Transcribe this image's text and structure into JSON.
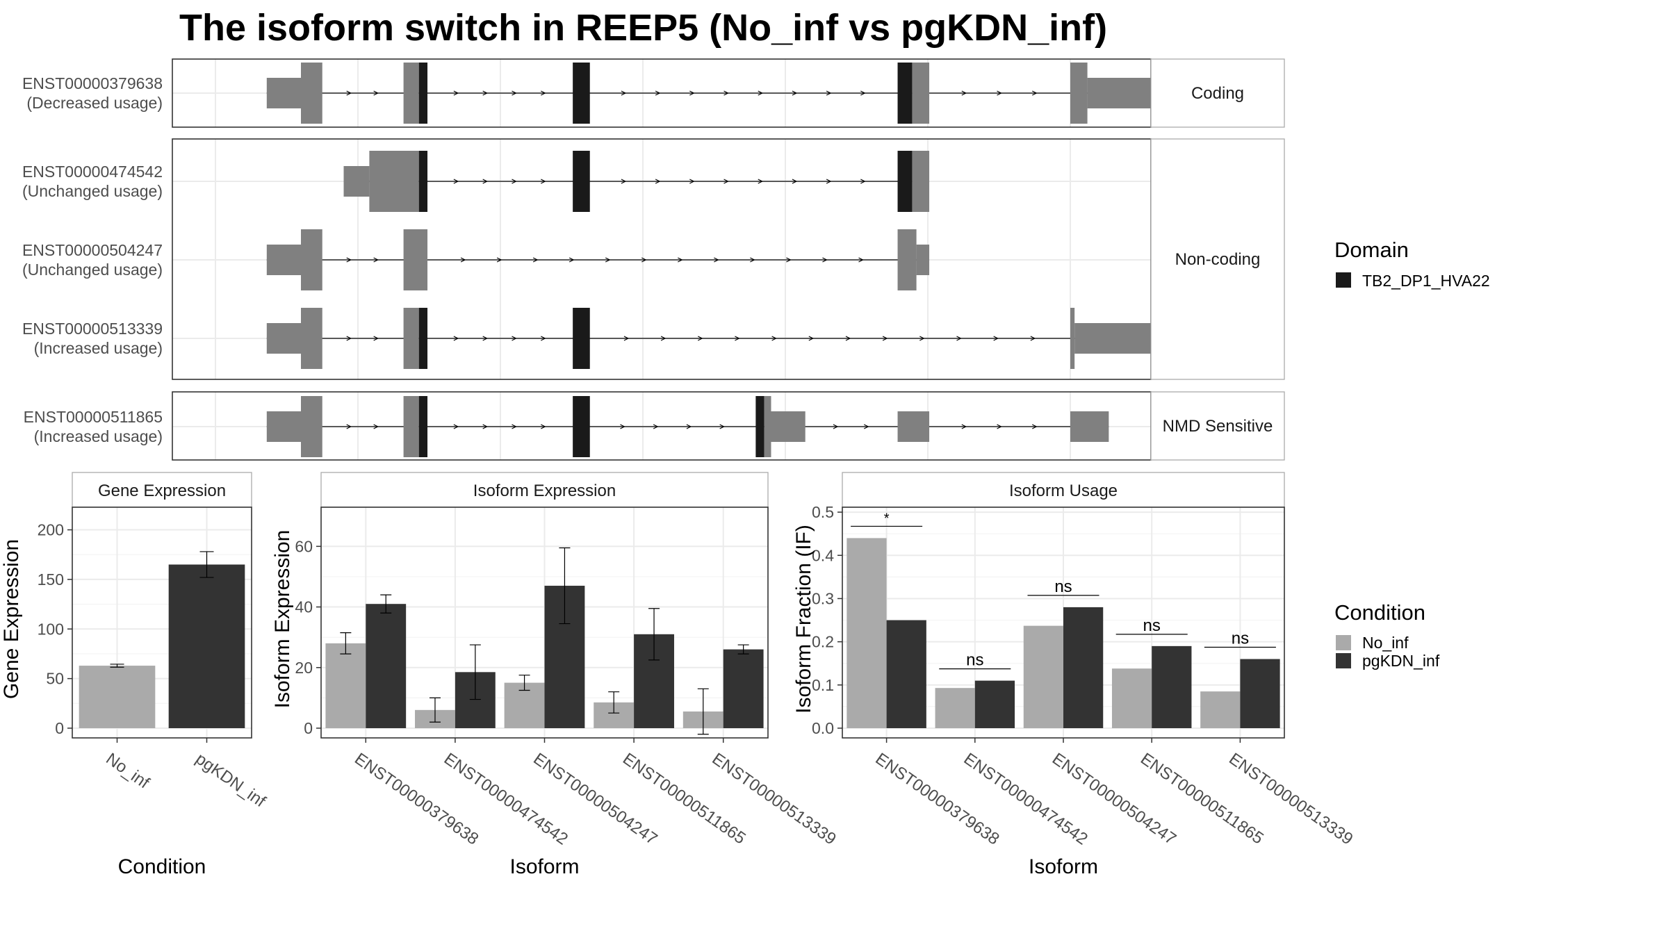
{
  "title": "The isoform switch in REEP5 (No_inf vs pgKDN_inf)",
  "colors": {
    "exon": "#808080",
    "domain": "#1a1a1a",
    "no_inf": "#aaaaaa",
    "pgkdn_inf": "#333333",
    "grid": "#ebebeb",
    "strip": "#ffffff",
    "panel_border": "#333333"
  },
  "structure": {
    "type": "gene_structure",
    "groups": [
      {
        "label": "Coding",
        "isoforms": [
          "ENST00000379638"
        ]
      },
      {
        "label": "Non-coding",
        "isoforms": [
          "ENST00000474542",
          "ENST00000504247",
          "ENST00000513339"
        ]
      },
      {
        "label": "NMD Sensitive",
        "isoforms": [
          "ENST00000511865"
        ]
      }
    ],
    "isoforms": [
      {
        "id": "ENST00000379638",
        "usage": "(Decreased usage)",
        "exons": [
          {
            "s": 0.06,
            "e": 0.1,
            "t": "cutr"
          },
          {
            "s": 0.1,
            "e": 0.125,
            "t": "cds"
          },
          {
            "s": 0.22,
            "e": 0.238,
            "t": "cds"
          },
          {
            "s": 0.238,
            "e": 0.248,
            "t": "dom"
          },
          {
            "s": 0.418,
            "e": 0.438,
            "t": "dom"
          },
          {
            "s": 0.798,
            "e": 0.815,
            "t": "dom"
          },
          {
            "s": 0.815,
            "e": 0.835,
            "t": "cds"
          },
          {
            "s": 1.0,
            "e": 1.02,
            "t": "cds"
          },
          {
            "s": 1.02,
            "e": 1.18,
            "t": "cutr"
          }
        ]
      },
      {
        "id": "ENST00000474542",
        "usage": "(Unchanged usage)",
        "exons": [
          {
            "s": 0.15,
            "e": 0.18,
            "t": "cutr"
          },
          {
            "s": 0.18,
            "e": 0.238,
            "t": "cds"
          },
          {
            "s": 0.238,
            "e": 0.248,
            "t": "dom"
          },
          {
            "s": 0.418,
            "e": 0.438,
            "t": "dom"
          },
          {
            "s": 0.798,
            "e": 0.815,
            "t": "dom"
          },
          {
            "s": 0.815,
            "e": 0.835,
            "t": "cds"
          }
        ]
      },
      {
        "id": "ENST00000504247",
        "usage": "(Unchanged usage)",
        "exons": [
          {
            "s": 0.06,
            "e": 0.1,
            "t": "cutr"
          },
          {
            "s": 0.1,
            "e": 0.125,
            "t": "cds"
          },
          {
            "s": 0.22,
            "e": 0.248,
            "t": "cds"
          },
          {
            "s": 0.798,
            "e": 0.82,
            "t": "cds"
          },
          {
            "s": 0.82,
            "e": 0.835,
            "t": "cutr"
          }
        ]
      },
      {
        "id": "ENST00000513339",
        "usage": "(Increased usage)",
        "exons": [
          {
            "s": 0.06,
            "e": 0.1,
            "t": "cutr"
          },
          {
            "s": 0.1,
            "e": 0.125,
            "t": "cds"
          },
          {
            "s": 0.22,
            "e": 0.238,
            "t": "cds"
          },
          {
            "s": 0.238,
            "e": 0.248,
            "t": "dom"
          },
          {
            "s": 0.418,
            "e": 0.438,
            "t": "dom"
          },
          {
            "s": 1.0,
            "e": 1.005,
            "t": "cds"
          },
          {
            "s": 1.005,
            "e": 1.095,
            "t": "cutr"
          }
        ]
      },
      {
        "id": "ENST00000511865",
        "usage": "(Increased usage)",
        "exons": [
          {
            "s": 0.06,
            "e": 0.1,
            "t": "cutr"
          },
          {
            "s": 0.1,
            "e": 0.125,
            "t": "cds"
          },
          {
            "s": 0.22,
            "e": 0.238,
            "t": "cds"
          },
          {
            "s": 0.238,
            "e": 0.248,
            "t": "dom"
          },
          {
            "s": 0.418,
            "e": 0.438,
            "t": "dom"
          },
          {
            "s": 0.632,
            "e": 0.642,
            "t": "dom"
          },
          {
            "s": 0.642,
            "e": 0.65,
            "t": "cds"
          },
          {
            "s": 0.65,
            "e": 0.69,
            "t": "cutr"
          },
          {
            "s": 0.798,
            "e": 0.835,
            "t": "cutr"
          },
          {
            "s": 1.0,
            "e": 1.045,
            "t": "cutr"
          }
        ]
      }
    ],
    "legend": {
      "title": "Domain",
      "entries": [
        "TB2_DP1_HVA22"
      ]
    }
  },
  "chart_data": [
    {
      "type": "bar",
      "panel": "Gene Expression",
      "categories": [
        "No_inf",
        "pgKDN_inf"
      ],
      "values": [
        63,
        165
      ],
      "errors": [
        1.5,
        13
      ],
      "xlabel": "Condition",
      "ylabel": "Gene Expression",
      "ylim": [
        0,
        220
      ],
      "yticks": [
        0,
        50,
        100,
        150,
        200
      ]
    },
    {
      "type": "bar",
      "panel": "Isoform Expression",
      "categories": [
        "ENST00000379638",
        "ENST00000474542",
        "ENST00000504247",
        "ENST00000511865",
        "ENST00000513339"
      ],
      "series": [
        {
          "name": "No_inf",
          "values": [
            28,
            6,
            15,
            8.5,
            5.5
          ],
          "errors": [
            3.5,
            4,
            2.5,
            3.5,
            7.5
          ]
        },
        {
          "name": "pgKDN_inf",
          "values": [
            41,
            18.5,
            47,
            31,
            26
          ],
          "errors": [
            3,
            9,
            12.5,
            8.5,
            1.5
          ]
        }
      ],
      "xlabel": "Isoform",
      "ylabel": "Isoform Expression",
      "ylim": [
        0,
        72
      ],
      "yticks": [
        0,
        20,
        40,
        60
      ]
    },
    {
      "type": "bar",
      "panel": "Isoform Usage",
      "categories": [
        "ENST00000379638",
        "ENST00000474542",
        "ENST00000504247",
        "ENST00000511865",
        "ENST00000513339"
      ],
      "series": [
        {
          "name": "No_inf",
          "values": [
            0.44,
            0.093,
            0.237,
            0.138,
            0.085
          ]
        },
        {
          "name": "pgKDN_inf",
          "values": [
            0.25,
            0.11,
            0.28,
            0.19,
            0.16
          ]
        }
      ],
      "significance": [
        "*",
        "ns",
        "ns",
        "ns",
        "ns"
      ],
      "xlabel": "Isoform",
      "ylabel": "Isoform Fraction (IF)",
      "ylim": [
        0,
        0.505
      ],
      "yticks": [
        "0.0",
        "0.1",
        "0.2",
        "0.3",
        "0.4",
        "0.5"
      ]
    }
  ],
  "condition_legend": {
    "title": "Condition",
    "entries": [
      "No_inf",
      "pgKDN_inf"
    ]
  }
}
